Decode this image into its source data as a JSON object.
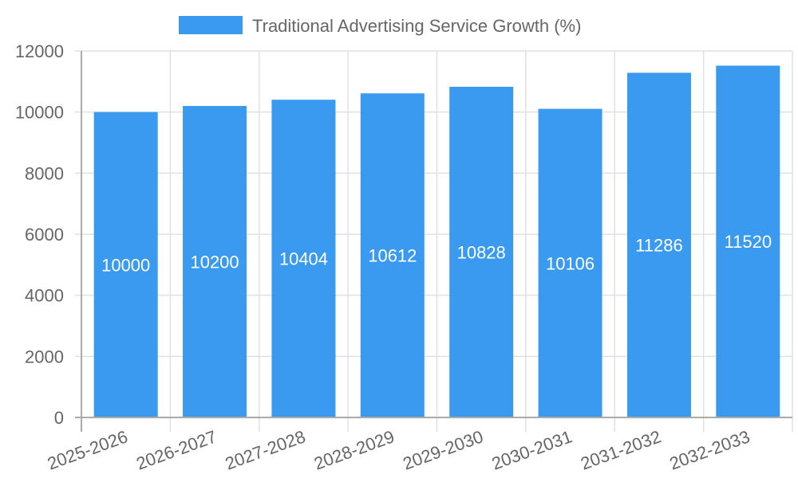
{
  "chart_data": {
    "type": "bar",
    "title": "",
    "xlabel": "",
    "ylabel": "",
    "categories": [
      "2025-2026",
      "2026-2027",
      "2027-2028",
      "2028-2029",
      "2029-2030",
      "2030-2031",
      "2031-2032",
      "2032-2033"
    ],
    "series": [
      {
        "name": "Traditional Advertising Service Growth (%)",
        "values": [
          10000,
          10200,
          10404,
          10612,
          10828,
          10106,
          11286,
          11520
        ],
        "color": "#399AF0"
      }
    ],
    "ylim": [
      0,
      12000
    ],
    "yticks": [
      0,
      2000,
      4000,
      6000,
      8000,
      10000,
      12000
    ],
    "grid": true,
    "legend_position": "top",
    "data_labels": true
  },
  "legend": {
    "label": "Traditional Advertising Service Growth (%)",
    "color": "#399AF0"
  },
  "colors": {
    "grid": "#e0e0e0",
    "axis": "#aaaaaa",
    "text": "#666666",
    "bar_label": "#ffffff"
  }
}
